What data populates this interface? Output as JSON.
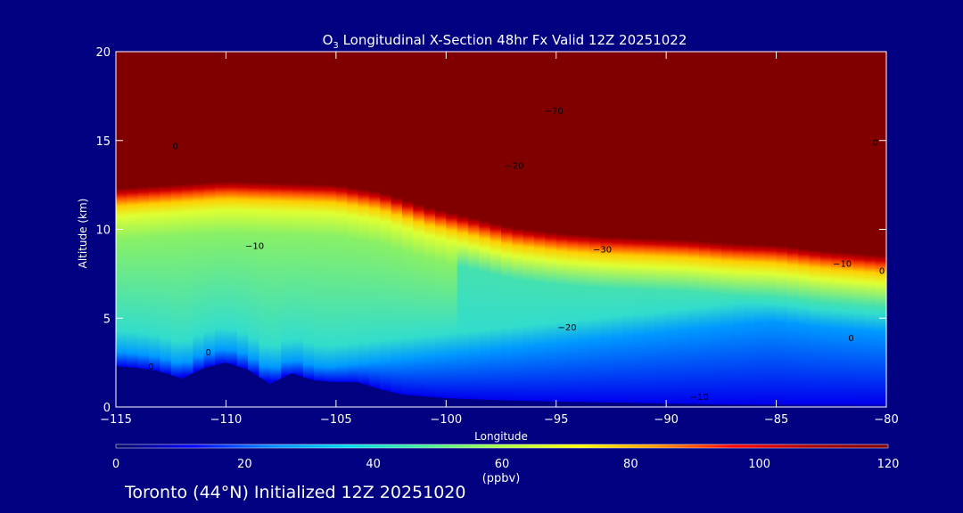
{
  "chart_data": {
    "type": "heatmap",
    "title_prefix": "O",
    "title_sub": "3",
    "title_rest": " Longitudinal X-Section 48hr  Fx Valid 12Z 20251022",
    "xlabel": "Longitude",
    "ylabel": "Altitude (km)",
    "xlim": [
      -115,
      -80
    ],
    "ylim": [
      0,
      20
    ],
    "x_ticks": [
      -115,
      -110,
      -105,
      -100,
      -95,
      -90,
      -85,
      -80
    ],
    "x_tick_labels": [
      "−115",
      "−110",
      "−105",
      "−100",
      "−95",
      "−90",
      "−85",
      "−80"
    ],
    "y_ticks": [
      0,
      5,
      10,
      15,
      20
    ],
    "y_tick_labels": [
      "0",
      "5",
      "10",
      "15",
      "20"
    ],
    "colorbar": {
      "min": 0,
      "max": 120,
      "unit": "(ppbv)",
      "ticks": [
        0,
        20,
        40,
        60,
        80,
        100,
        120
      ],
      "tick_labels": [
        "0",
        "20",
        "40",
        "60",
        "80",
        "100",
        "120"
      ],
      "colors": [
        "#000060",
        "#0000ff",
        "#0088ff",
        "#00ddee",
        "#44ee99",
        "#aaff44",
        "#ffff00",
        "#ff9900",
        "#ff0000",
        "#aa0000",
        "#800000"
      ]
    },
    "tropopause": {
      "x": [
        -115,
        -110,
        -105,
        -103,
        -101,
        -99,
        -97,
        -95,
        -93,
        -91,
        -89,
        -87,
        -85,
        -83,
        -81,
        -80
      ],
      "y": [
        12.0,
        12.4,
        12.2,
        11.8,
        11.0,
        10.4,
        9.8,
        9.5,
        9.3,
        9.2,
        9.1,
        8.9,
        8.8,
        8.5,
        8.3,
        8.2
      ]
    },
    "terrain": {
      "x": [
        -115,
        -114,
        -113,
        -112,
        -111,
        -110,
        -109,
        -108,
        -107,
        -106,
        -105,
        -104,
        -103,
        -102,
        -101,
        -100,
        -98,
        -95,
        -92,
        -90,
        -88,
        -85,
        -83,
        -80
      ],
      "y": [
        2.3,
        2.2,
        2.0,
        1.6,
        2.2,
        2.5,
        2.1,
        1.3,
        1.9,
        1.5,
        1.4,
        1.4,
        1.0,
        0.7,
        0.6,
        0.5,
        0.4,
        0.3,
        0.25,
        0.2,
        0.15,
        0.1,
        0.05,
        0.0
      ]
    },
    "contour_labels": [
      {
        "text": "0",
        "x": -112.3,
        "y": 14.5
      },
      {
        "text": "0",
        "x": -110.8,
        "y": 2.9
      },
      {
        "text": "0",
        "x": -113.4,
        "y": 2.1
      },
      {
        "text": "−10",
        "x": -108.7,
        "y": 8.9
      },
      {
        "text": "−70",
        "x": -95.1,
        "y": 16.5
      },
      {
        "text": "−20",
        "x": -96.9,
        "y": 13.4
      },
      {
        "text": "−30",
        "x": -92.9,
        "y": 8.7
      },
      {
        "text": "−20",
        "x": -94.5,
        "y": 4.3
      },
      {
        "text": "−10",
        "x": -82.0,
        "y": 7.9
      },
      {
        "text": "0",
        "x": -80.2,
        "y": 7.5
      },
      {
        "text": "0",
        "x": -80.5,
        "y": 14.7
      },
      {
        "text": "0",
        "x": -81.6,
        "y": 3.7
      },
      {
        "text": "−10",
        "x": -88.5,
        "y": 0.4
      }
    ]
  },
  "footer": "Toronto (44°N) Initialized 12Z 20251020"
}
